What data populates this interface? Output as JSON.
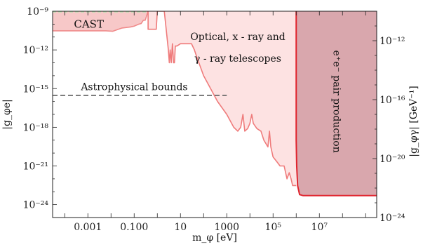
{
  "chart_data": {
    "type": "area",
    "xlabel": "m_φ [eV]",
    "ylabel_left": "|g_φe|",
    "ylabel_right": "|g_φγ| [GeV⁻¹]",
    "x_scale": "log",
    "y_scale": "log",
    "xlim": [
      3e-05,
      3000000000
    ],
    "ylim": [
      1e-25,
      1e-09
    ],
    "x_ticks": [
      {
        "value": 0.001,
        "label": "0.001"
      },
      {
        "value": 0.1,
        "label": "0.100"
      },
      {
        "value": 10,
        "label": "10"
      },
      {
        "value": 1000,
        "label": "1000"
      },
      {
        "value": 100000,
        "label": "10⁵"
      },
      {
        "value": 10000000,
        "label": "10⁷"
      }
    ],
    "y_ticks_left": [
      {
        "value": 1e-09,
        "label": "10⁻⁹"
      },
      {
        "value": 1e-12,
        "label": "10⁻¹²"
      },
      {
        "value": 1e-15,
        "label": "10⁻¹⁵"
      },
      {
        "value": 1e-18,
        "label": "10⁻¹⁸"
      },
      {
        "value": 1e-21,
        "label": "10⁻²¹"
      },
      {
        "value": 1e-24,
        "label": "10⁻²⁴"
      }
    ],
    "y_ticks_right": [
      {
        "value": 1e-12,
        "label": "10⁻¹²"
      },
      {
        "value": 1e-16,
        "label": "10⁻¹⁶"
      },
      {
        "value": 1e-20,
        "label": "10⁻²⁰"
      },
      {
        "value": 1e-24,
        "label": "10⁻²⁴"
      }
    ],
    "annotations": {
      "cast": "CAST",
      "telescopes_line1": "Optical, x - ray and",
      "telescopes_line2": "γ - ray telescopes",
      "astro": "Astrophysical bounds",
      "pair": "e⁺e⁻ pair production"
    },
    "regions": [
      {
        "name": "CAST",
        "color": "#f7c8c8",
        "boundary_color": "#f08a8a",
        "boundary": [
          [
            3e-05,
            3e-11
          ],
          [
            0.002,
            3e-11
          ],
          [
            0.006,
            3e-11
          ],
          [
            0.012,
            2.8e-11
          ],
          [
            0.03,
            5e-11
          ],
          [
            0.07,
            6e-11
          ],
          [
            0.1,
            7e-11
          ],
          [
            0.16,
            1e-10
          ],
          [
            0.2,
            1.1e-10
          ],
          [
            0.25,
            2e-10
          ],
          [
            0.3,
            2e-10
          ],
          [
            0.4,
            1e-09
          ]
        ]
      },
      {
        "name": "Optical, x-ray and γ-ray telescopes",
        "color": "#fde2e2",
        "boundary_color": "#ef7b7b",
        "boundary": [
          [
            0.4,
            1e-09
          ],
          [
            0.4,
            4e-11
          ],
          [
            0.9,
            4e-11
          ],
          [
            1.0,
            1e-09
          ],
          [
            1.2,
            1e-09
          ],
          [
            2.0,
            1e-09
          ],
          [
            3.0,
            1e-12
          ],
          [
            3.3,
            1e-13
          ],
          [
            3.6,
            1e-12
          ],
          [
            4.0,
            1e-13
          ],
          [
            4.5,
            3e-12
          ],
          [
            5.0,
            1e-13
          ],
          [
            5.5,
            1e-13
          ],
          [
            6.0,
            2e-12
          ],
          [
            7.0,
            2e-12
          ],
          [
            10,
            3e-12
          ],
          [
            30,
            3e-12
          ],
          [
            40,
            1e-12
          ],
          [
            50,
            3e-13
          ],
          [
            100,
            1e-14
          ],
          [
            200,
            1e-15
          ],
          [
            400,
            1e-16
          ],
          [
            1000,
            1e-17
          ],
          [
            2000,
            1e-18
          ],
          [
            3000,
            5e-19
          ],
          [
            4000,
            1e-18
          ],
          [
            5000,
            1e-17
          ],
          [
            6000,
            5e-19
          ],
          [
            8000,
            8e-19
          ],
          [
            10000,
            2e-18
          ],
          [
            12000,
            1e-17
          ],
          [
            14000,
            2e-18
          ],
          [
            20000,
            8e-19
          ],
          [
            30000,
            5e-19
          ],
          [
            40000,
            1e-19
          ],
          [
            60000,
            3e-20
          ],
          [
            70000,
            5e-19
          ],
          [
            80000,
            3e-20
          ],
          [
            100000,
            5e-21
          ],
          [
            150000,
            2e-21
          ],
          [
            200000,
            1e-21
          ],
          [
            300000,
            1e-21
          ],
          [
            400000,
            1e-22
          ],
          [
            500000,
            3e-22
          ],
          [
            600000,
            1e-22
          ],
          [
            700000,
            3e-23
          ],
          [
            1000000,
            3e-23
          ]
        ]
      },
      {
        "name": "e⁺e⁻ pair production",
        "color": "#d9a7ad",
        "boundary_color": "#e0242e",
        "boundary": [
          [
            1000000,
            1e-09
          ],
          [
            1000000,
            1e-19
          ],
          [
            1050000,
            1e-21
          ],
          [
            1150000,
            3e-23
          ],
          [
            1400000,
            6e-24
          ],
          [
            2000000,
            5e-24
          ],
          [
            3000000000,
            5e-24
          ]
        ]
      }
    ],
    "astrophysical_bound": {
      "value": 3e-16,
      "x_range": [
        3e-05,
        1000
      ],
      "color": "#666666"
    },
    "cast_top_line": {
      "value": 1e-09,
      "x_range": [
        3e-05,
        0.4
      ],
      "color": "#b8e0b0"
    }
  }
}
